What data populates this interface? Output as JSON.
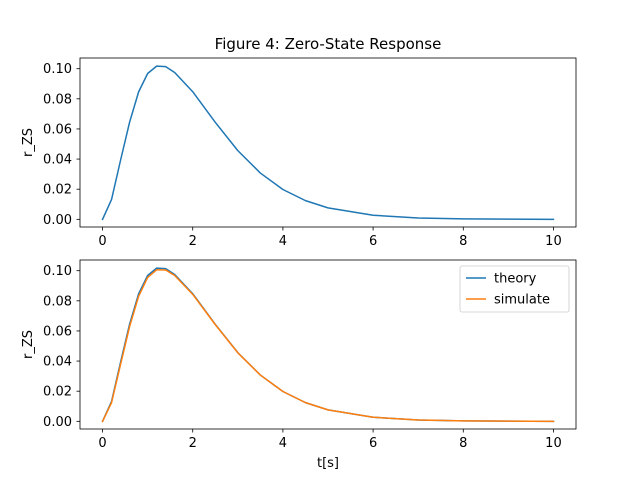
{
  "chart_data": [
    {
      "type": "line",
      "title": "Figure 4: Zero-State Response",
      "xlabel": "",
      "ylabel": "r_ZS",
      "xlim": [
        -0.5,
        10.5
      ],
      "ylim": [
        -0.0051,
        0.1071
      ],
      "xticks": [
        "0",
        "2",
        "4",
        "6",
        "8",
        "10"
      ],
      "yticks": [
        "0.00",
        "0.02",
        "0.04",
        "0.06",
        "0.08",
        "0.10"
      ],
      "grid": false,
      "legend": null,
      "series": [
        {
          "color": "#1f77b4",
          "x": [
            0,
            0.2,
            0.4,
            0.6,
            0.8,
            1.0,
            1.2,
            1.4,
            1.6,
            2.0,
            2.5,
            3.0,
            3.5,
            4.0,
            4.5,
            5.0,
            6.0,
            7.0,
            8.0,
            9.0,
            10.0
          ],
          "y": [
            0.0,
            0.0132,
            0.0393,
            0.0645,
            0.0846,
            0.0968,
            0.1017,
            0.1014,
            0.0975,
            0.0847,
            0.0644,
            0.0456,
            0.0307,
            0.0198,
            0.0124,
            0.0076,
            0.0027,
            0.0009,
            0.0003,
            0.0001,
            0.0
          ]
        }
      ]
    },
    {
      "type": "line",
      "title": "",
      "xlabel": "t[s]",
      "ylabel": "r_ZS",
      "xlim": [
        -0.5,
        10.5
      ],
      "ylim": [
        -0.0051,
        0.1071
      ],
      "xticks": [
        "0",
        "2",
        "4",
        "6",
        "8",
        "10"
      ],
      "yticks": [
        "0.00",
        "0.02",
        "0.04",
        "0.06",
        "0.08",
        "0.10"
      ],
      "grid": false,
      "legend": "top-right",
      "series": [
        {
          "name": "theory",
          "color": "#1f77b4",
          "x": [
            0,
            0.2,
            0.4,
            0.6,
            0.8,
            1.0,
            1.2,
            1.4,
            1.6,
            2.0,
            2.5,
            3.0,
            3.5,
            4.0,
            4.5,
            5.0,
            6.0,
            7.0,
            8.0,
            9.0,
            10.0
          ],
          "y": [
            0.0,
            0.0132,
            0.0393,
            0.0645,
            0.0846,
            0.0968,
            0.1017,
            0.1014,
            0.0975,
            0.0847,
            0.0644,
            0.0456,
            0.0307,
            0.0198,
            0.0124,
            0.0076,
            0.0027,
            0.0009,
            0.0003,
            0.0001,
            0.0
          ]
        },
        {
          "name": "simulate",
          "color": "#ff7f0e",
          "x": [
            0,
            0.2,
            0.4,
            0.6,
            0.8,
            1.0,
            1.2,
            1.4,
            1.6,
            2.0,
            2.5,
            3.0,
            3.5,
            4.0,
            4.5,
            5.0,
            6.0,
            7.0,
            8.0,
            9.0,
            10.0
          ],
          "y": [
            0.0,
            0.0124,
            0.0378,
            0.0629,
            0.083,
            0.0955,
            0.1006,
            0.1005,
            0.0968,
            0.0843,
            0.0642,
            0.0455,
            0.0307,
            0.0198,
            0.0124,
            0.0076,
            0.0027,
            0.0009,
            0.0003,
            0.0001,
            0.0
          ]
        }
      ]
    }
  ]
}
